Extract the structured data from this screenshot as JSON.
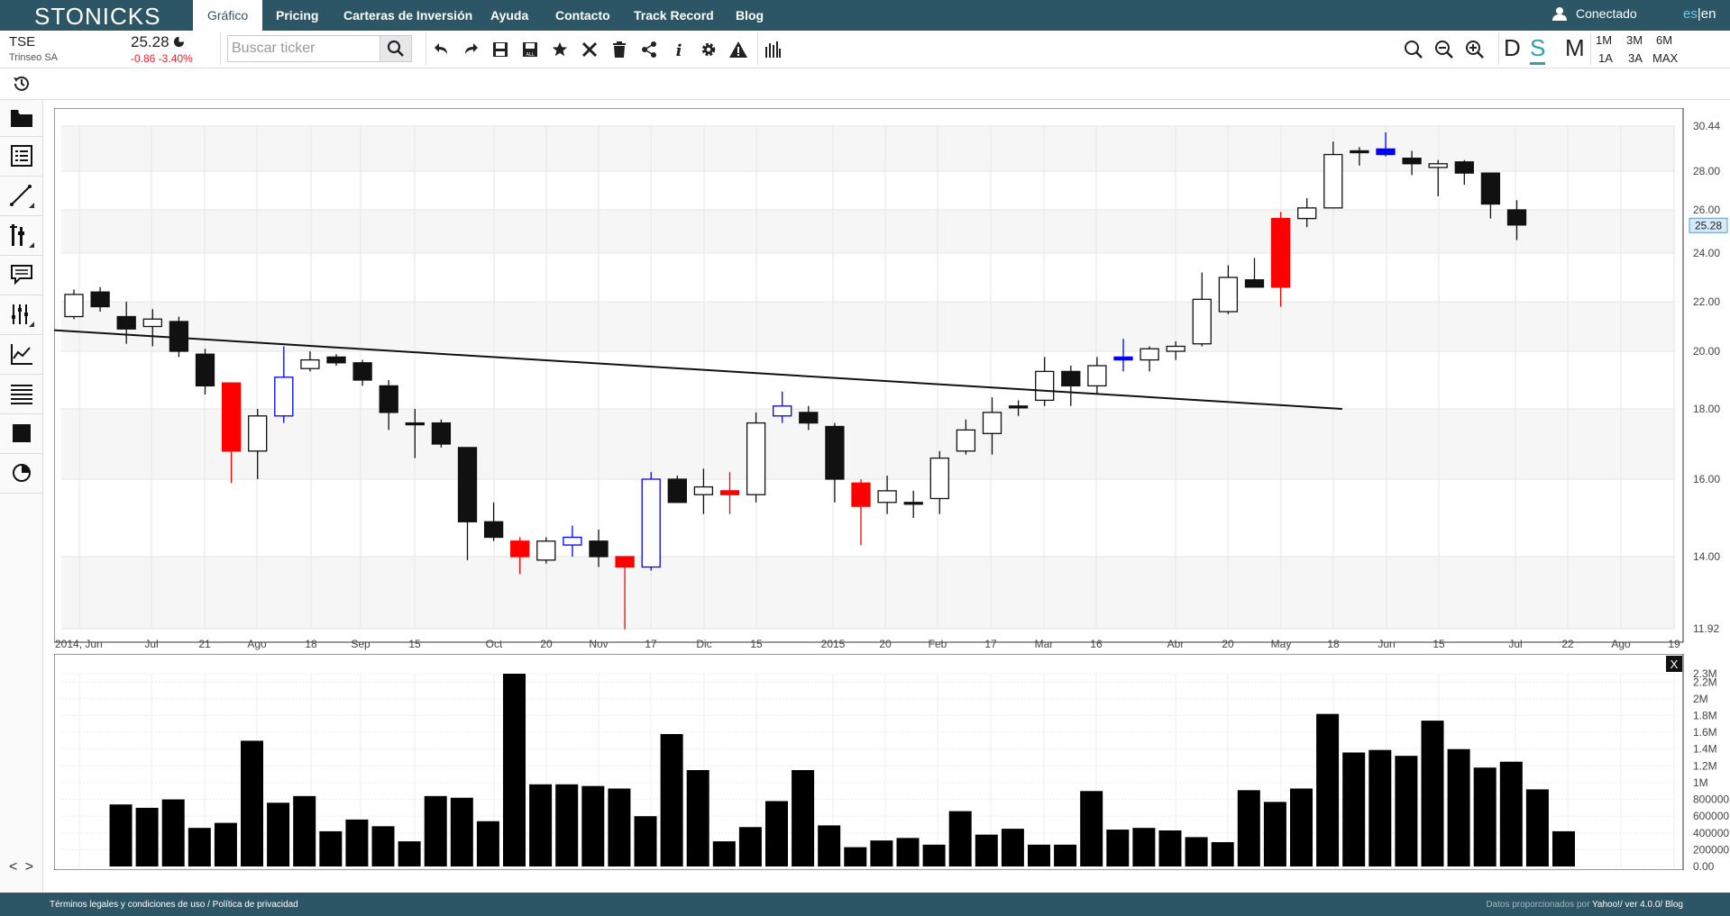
{
  "nav": {
    "logo": "STONICKS",
    "items": [
      {
        "label": "Gráfico",
        "active": true
      },
      {
        "label": "Pricing"
      },
      {
        "label": "Carteras de Inversión"
      },
      {
        "label": "Ayuda"
      },
      {
        "label": "Contacto"
      },
      {
        "label": "Track Record"
      },
      {
        "label": "Blog"
      }
    ],
    "user_label": "Conectado",
    "lang_es": "es",
    "lang_sep": "|",
    "lang_en": "en"
  },
  "quote": {
    "ticker": "TSE",
    "company": "Trinseo SA",
    "price": "25.28",
    "change": "-0.86 -3.40%"
  },
  "search": {
    "placeholder": "Buscar ticker"
  },
  "toolbar_icons": [
    "undo-icon",
    "redo-icon",
    "save-icon",
    "save-all-icon",
    "star-icon",
    "delete-icon",
    "trash-icon",
    "share-icon",
    "info-icon",
    "settings-icon",
    "warning-icon",
    "bars-icon"
  ],
  "periods": {
    "d": "D",
    "s": "S",
    "m": "M",
    "active": "S"
  },
  "ranges": {
    "r1m": "1M",
    "r3m": "3M",
    "r6m": "6M",
    "r1a": "1A",
    "r3a": "3A",
    "rmax": "MAX"
  },
  "sidebar_icons": [
    "history-icon",
    "folder-icon",
    "list-icon",
    "line-tool-icon",
    "indicators-icon",
    "comment-icon",
    "adjust-icon",
    "line-chart-icon",
    "lines-icon",
    "square-icon",
    "pie-icon"
  ],
  "sidebar_nav": "< >",
  "colors": {
    "nav_bg": "#2c5666",
    "accent": "#2aa3b0",
    "down": "#e23",
    "candle_red": "#ff0000",
    "candle_blue": "#0000ff"
  },
  "chart_data": [
    {
      "type": "candlestick",
      "title": "",
      "y_ticks": [
        "11.92",
        "14.00",
        "16.00",
        "18.00",
        "20.00",
        "22.00",
        "24.00",
        "26.00",
        "28.00",
        "30.44"
      ],
      "x_ticks": [
        "2014, Jun",
        "Jul",
        "21",
        "Ago",
        "18",
        "Sep",
        "15",
        "Oct",
        "20",
        "Nov",
        "17",
        "Dic",
        "15",
        "2015",
        "20",
        "Feb",
        "17",
        "Mar",
        "16",
        "Abr",
        "20",
        "May",
        "18",
        "Jun",
        "15",
        "Jul",
        "22",
        "Ago",
        "19"
      ],
      "last_price_label": "25.28",
      "ylim": [
        11.92,
        30.44
      ],
      "trendline": {
        "from": [
          0,
          20.85
        ],
        "to": [
          48,
          18.0
        ]
      },
      "candles": [
        {
          "o": 21.4,
          "h": 22.5,
          "l": 21.3,
          "c": 22.3,
          "col": "w"
        },
        {
          "o": 22.4,
          "h": 22.6,
          "l": 21.6,
          "c": 21.8,
          "col": "b"
        },
        {
          "o": 21.4,
          "h": 22.0,
          "l": 20.3,
          "c": 20.9,
          "col": "b"
        },
        {
          "o": 21.0,
          "h": 21.7,
          "l": 20.2,
          "c": 21.3,
          "col": "w"
        },
        {
          "o": 21.2,
          "h": 21.4,
          "l": 19.8,
          "c": 20.0,
          "col": "b"
        },
        {
          "o": 19.9,
          "h": 20.1,
          "l": 18.5,
          "c": 18.8,
          "col": "b"
        },
        {
          "o": 18.9,
          "h": 18.9,
          "l": 15.9,
          "c": 16.8,
          "col": "r"
        },
        {
          "o": 16.8,
          "h": 18.0,
          "l": 16.0,
          "c": 17.8,
          "col": "w"
        },
        {
          "o": 17.8,
          "h": 20.2,
          "l": 17.6,
          "c": 19.1,
          "col": "bl"
        },
        {
          "o": 19.4,
          "h": 20.0,
          "l": 19.3,
          "c": 19.7,
          "col": "w"
        },
        {
          "o": 19.8,
          "h": 19.9,
          "l": 19.5,
          "c": 19.6,
          "col": "b"
        },
        {
          "o": 19.6,
          "h": 19.7,
          "l": 18.8,
          "c": 19.0,
          "col": "b"
        },
        {
          "o": 18.8,
          "h": 19.0,
          "l": 17.4,
          "c": 17.9,
          "col": "b"
        },
        {
          "o": 17.6,
          "h": 18.0,
          "l": 16.6,
          "c": 17.6,
          "col": "b"
        },
        {
          "o": 17.6,
          "h": 17.7,
          "l": 16.9,
          "c": 17.0,
          "col": "b"
        },
        {
          "o": 16.9,
          "h": 16.9,
          "l": 13.9,
          "c": 14.9,
          "col": "b"
        },
        {
          "o": 14.9,
          "h": 15.4,
          "l": 14.4,
          "c": 14.5,
          "col": "b"
        },
        {
          "o": 14.4,
          "h": 14.5,
          "l": 13.5,
          "c": 14.0,
          "col": "r"
        },
        {
          "o": 13.9,
          "h": 14.5,
          "l": 13.8,
          "c": 14.4,
          "col": "w"
        },
        {
          "o": 14.3,
          "h": 14.8,
          "l": 14.0,
          "c": 14.5,
          "col": "bl"
        },
        {
          "o": 14.4,
          "h": 14.7,
          "l": 13.7,
          "c": 14.0,
          "col": "b"
        },
        {
          "o": 14.0,
          "h": 14.0,
          "l": 11.9,
          "c": 13.7,
          "col": "r"
        },
        {
          "o": 13.7,
          "h": 16.2,
          "l": 13.6,
          "c": 16.0,
          "col": "bl"
        },
        {
          "o": 16.0,
          "h": 16.1,
          "l": 15.4,
          "c": 15.4,
          "col": "b"
        },
        {
          "o": 15.6,
          "h": 16.3,
          "l": 15.1,
          "c": 15.8,
          "col": "w"
        },
        {
          "o": 15.7,
          "h": 16.2,
          "l": 15.1,
          "c": 15.6,
          "col": "r"
        },
        {
          "o": 15.6,
          "h": 17.9,
          "l": 15.4,
          "c": 17.6,
          "col": "w"
        },
        {
          "o": 17.8,
          "h": 18.6,
          "l": 17.6,
          "c": 18.1,
          "col": "bl"
        },
        {
          "o": 17.9,
          "h": 18.1,
          "l": 17.4,
          "c": 17.6,
          "col": "b"
        },
        {
          "o": 17.5,
          "h": 17.6,
          "l": 15.4,
          "c": 16.0,
          "col": "b"
        },
        {
          "o": 15.9,
          "h": 16.0,
          "l": 14.3,
          "c": 15.3,
          "col": "r"
        },
        {
          "o": 15.4,
          "h": 16.1,
          "l": 15.1,
          "c": 15.7,
          "col": "w"
        },
        {
          "o": 15.4,
          "h": 15.7,
          "l": 15.0,
          "c": 15.4,
          "col": "b"
        },
        {
          "o": 15.5,
          "h": 16.8,
          "l": 15.1,
          "c": 16.6,
          "col": "w"
        },
        {
          "o": 16.8,
          "h": 17.7,
          "l": 16.7,
          "c": 17.4,
          "col": "w"
        },
        {
          "o": 17.3,
          "h": 18.4,
          "l": 16.7,
          "c": 17.9,
          "col": "w"
        },
        {
          "o": 18.1,
          "h": 18.3,
          "l": 17.8,
          "c": 18.1,
          "col": "b"
        },
        {
          "o": 18.3,
          "h": 19.8,
          "l": 18.1,
          "c": 19.3,
          "col": "w"
        },
        {
          "o": 19.3,
          "h": 19.5,
          "l": 18.1,
          "c": 18.8,
          "col": "b"
        },
        {
          "o": 18.8,
          "h": 19.8,
          "l": 18.5,
          "c": 19.5,
          "col": "w"
        },
        {
          "o": 19.8,
          "h": 20.5,
          "l": 19.3,
          "c": 19.7,
          "col": "bl"
        },
        {
          "o": 19.7,
          "h": 20.2,
          "l": 19.3,
          "c": 20.1,
          "col": "w"
        },
        {
          "o": 20.0,
          "h": 20.4,
          "l": 19.7,
          "c": 20.2,
          "col": "w"
        },
        {
          "o": 20.3,
          "h": 23.2,
          "l": 20.2,
          "c": 22.1,
          "col": "w"
        },
        {
          "o": 21.6,
          "h": 23.5,
          "l": 21.5,
          "c": 23.0,
          "col": "w"
        },
        {
          "o": 22.9,
          "h": 23.8,
          "l": 22.6,
          "c": 22.6,
          "col": "b"
        },
        {
          "o": 22.6,
          "h": 25.9,
          "l": 21.8,
          "c": 25.6,
          "col": "r"
        },
        {
          "o": 25.6,
          "h": 26.6,
          "l": 25.2,
          "c": 26.1,
          "col": "w"
        },
        {
          "o": 26.1,
          "h": 29.6,
          "l": 26.1,
          "c": 28.9,
          "col": "w"
        },
        {
          "o": 29.1,
          "h": 29.3,
          "l": 28.3,
          "c": 29.0,
          "col": "b"
        },
        {
          "o": 29.2,
          "h": 30.1,
          "l": 28.8,
          "c": 28.9,
          "col": "bl"
        },
        {
          "o": 28.7,
          "h": 29.1,
          "l": 27.8,
          "c": 28.4,
          "col": "b"
        },
        {
          "o": 28.2,
          "h": 28.6,
          "l": 26.7,
          "c": 28.4,
          "col": "w"
        },
        {
          "o": 28.5,
          "h": 28.6,
          "l": 27.3,
          "c": 27.9,
          "col": "b"
        },
        {
          "o": 27.9,
          "h": 27.9,
          "l": 25.6,
          "c": 26.3,
          "col": "b"
        },
        {
          "o": 26.0,
          "h": 26.5,
          "l": 24.6,
          "c": 25.3,
          "col": "b"
        }
      ]
    },
    {
      "type": "bar",
      "title": "",
      "y_ticks": [
        "2.3M",
        "2.2M",
        "2M",
        "1.8M",
        "1.6M",
        "1.4M",
        "1.2M",
        "1M",
        "800000.00",
        "600000.00",
        "400000.00",
        "200000.00",
        "0.00"
      ],
      "ylim": [
        0,
        2300000
      ],
      "values": [
        740000,
        700000,
        800000,
        460000,
        520000,
        1500000,
        760000,
        840000,
        420000,
        560000,
        480000,
        300000,
        840000,
        820000,
        540000,
        2300000,
        980000,
        980000,
        960000,
        930000,
        600000,
        1580000,
        1150000,
        300000,
        470000,
        780000,
        1150000,
        490000,
        230000,
        310000,
        340000,
        260000,
        660000,
        380000,
        450000,
        260000,
        260000,
        900000,
        440000,
        460000,
        430000,
        350000,
        290000,
        910000,
        770000,
        930000,
        1820000,
        1360000,
        1390000,
        1320000,
        1740000,
        1400000,
        1180000,
        1250000,
        920000,
        420000
      ]
    }
  ],
  "footer": {
    "left": "Términos legales y condiciones de uso / Política de privacidad",
    "right_prefix": "Datos proporcionados por ",
    "right_bold": "Yahoo!/ ver 4.0.0/ Blog"
  }
}
